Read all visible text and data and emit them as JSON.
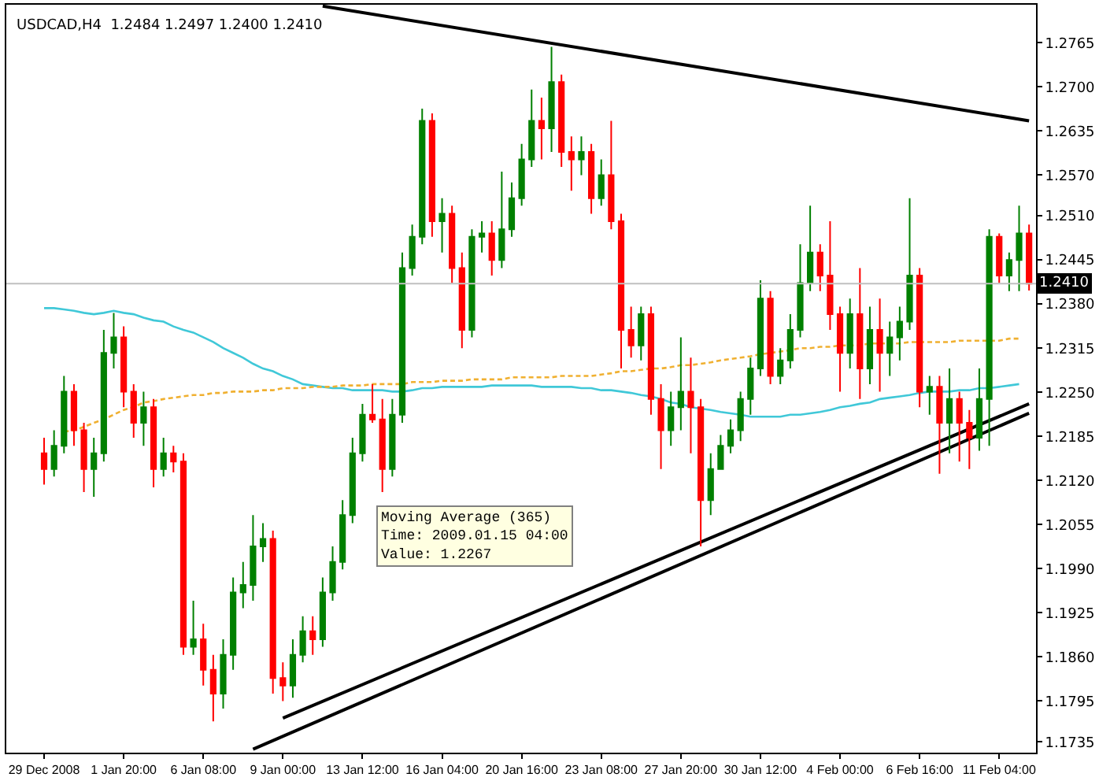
{
  "chart_data": {
    "type": "candlestick",
    "title": "USDCAD,H4  1.2484 1.2497 1.2400 1.2410",
    "categories": [
      "29 Dec 2008",
      null,
      null,
      null,
      null,
      null,
      null,
      null,
      "1 Jan 20:00",
      null,
      null,
      null,
      null,
      null,
      null,
      null,
      "6 Jan 08:00",
      null,
      null,
      null,
      null,
      null,
      null,
      null,
      "9 Jan 00:00",
      null,
      null,
      null,
      null,
      null,
      null,
      null,
      "13 Jan 12:00",
      null,
      null,
      null,
      null,
      null,
      null,
      null,
      "16 Jan 04:00",
      null,
      null,
      null,
      null,
      null,
      null,
      null,
      "20 Jan 16:00",
      null,
      null,
      null,
      null,
      null,
      null,
      null,
      "23 Jan 08:00",
      null,
      null,
      null,
      null,
      null,
      null,
      null,
      "27 Jan 20:00",
      null,
      null,
      null,
      null,
      null,
      null,
      null,
      "30 Jan 12:00",
      null,
      null,
      null,
      null,
      null,
      null,
      null,
      "4 Feb 00:00",
      null,
      null,
      null,
      null,
      null,
      null,
      null,
      "6 Feb 16:00",
      null,
      null,
      null,
      null,
      null,
      null,
      null,
      "11 Feb 04:00",
      null,
      null,
      null
    ],
    "ohlc": [
      [
        1.216,
        1.2183,
        1.2114,
        1.2137
      ],
      [
        1.2137,
        1.2194,
        1.2126,
        1.2171
      ],
      [
        1.2171,
        1.2274,
        1.216,
        1.2251
      ],
      [
        1.2251,
        1.2262,
        1.2171,
        1.2194
      ],
      [
        1.2194,
        1.2205,
        1.2103,
        1.2137
      ],
      [
        1.2137,
        1.2183,
        1.2096,
        1.216
      ],
      [
        1.216,
        1.2342,
        1.2148,
        1.2308
      ],
      [
        1.2308,
        1.2367,
        1.2285,
        1.2331
      ],
      [
        1.2331,
        1.2347,
        1.2228,
        1.2251
      ],
      [
        1.2251,
        1.2262,
        1.2183,
        1.2205
      ],
      [
        1.2205,
        1.2251,
        1.2171,
        1.2228
      ],
      [
        1.2228,
        1.224,
        1.211,
        1.2137
      ],
      [
        1.2137,
        1.2183,
        1.2126,
        1.216
      ],
      [
        1.216,
        1.2171,
        1.2132,
        1.2148
      ],
      [
        1.2148,
        1.216,
        1.1863,
        1.1875
      ],
      [
        1.1875,
        1.1943,
        1.1863,
        1.1886
      ],
      [
        1.1886,
        1.1909,
        1.1818,
        1.1841
      ],
      [
        1.1841,
        1.1863,
        1.1765,
        1.1806
      ],
      [
        1.1806,
        1.1886,
        1.1784,
        1.1863
      ],
      [
        1.1863,
        1.1977,
        1.1841,
        1.1955
      ],
      [
        1.1955,
        1.2,
        1.1932,
        1.1966
      ],
      [
        1.1966,
        1.2069,
        1.1943,
        1.2023
      ],
      [
        1.2023,
        1.2057,
        1.2,
        1.2034
      ],
      [
        1.2034,
        1.2046,
        1.1806,
        1.1829
      ],
      [
        1.1829,
        1.1852,
        1.1795,
        1.1818
      ],
      [
        1.1818,
        1.1886,
        1.18,
        1.1863
      ],
      [
        1.1863,
        1.192,
        1.1852,
        1.1898
      ],
      [
        1.1898,
        1.192,
        1.1863,
        1.1886
      ],
      [
        1.1886,
        1.1977,
        1.1875,
        1.1955
      ],
      [
        1.1955,
        1.2023,
        1.1943,
        1.2
      ],
      [
        1.2,
        1.2091,
        1.1989,
        1.2069
      ],
      [
        1.2069,
        1.2183,
        1.2057,
        1.216
      ],
      [
        1.216,
        1.2233,
        1.2148,
        1.2217
      ],
      [
        1.2217,
        1.2262,
        1.2205,
        1.221
      ],
      [
        1.221,
        1.224,
        1.2103,
        1.2137
      ],
      [
        1.2137,
        1.224,
        1.2126,
        1.2217
      ],
      [
        1.2217,
        1.2456,
        1.2205,
        1.2433
      ],
      [
        1.2433,
        1.2497,
        1.2422,
        1.2479
      ],
      [
        1.2479,
        1.2668,
        1.2468,
        1.265
      ],
      [
        1.265,
        1.2661,
        1.2479,
        1.2502
      ],
      [
        1.2502,
        1.2536,
        1.2456,
        1.2513
      ],
      [
        1.2513,
        1.2525,
        1.2411,
        1.2433
      ],
      [
        1.2433,
        1.2456,
        1.2315,
        1.2342
      ],
      [
        1.2342,
        1.249,
        1.2331,
        1.2479
      ],
      [
        1.2479,
        1.2502,
        1.2456,
        1.2484
      ],
      [
        1.2484,
        1.2502,
        1.2422,
        1.2445
      ],
      [
        1.2445,
        1.2575,
        1.2433,
        1.249
      ],
      [
        1.249,
        1.2559,
        1.2479,
        1.2536
      ],
      [
        1.2536,
        1.2616,
        1.2525,
        1.2593
      ],
      [
        1.2593,
        1.2696,
        1.2582,
        1.265
      ],
      [
        1.265,
        1.2684,
        1.2593,
        1.2639
      ],
      [
        1.2639,
        1.2759,
        1.2604,
        1.2707
      ],
      [
        1.2707,
        1.2718,
        1.2582,
        1.2604
      ],
      [
        1.2604,
        1.2627,
        1.2547,
        1.2593
      ],
      [
        1.2593,
        1.2627,
        1.257,
        1.2604
      ],
      [
        1.2604,
        1.2616,
        1.2513,
        1.2536
      ],
      [
        1.2536,
        1.2593,
        1.2525,
        1.257
      ],
      [
        1.257,
        1.265,
        1.249,
        1.2502
      ],
      [
        1.2502,
        1.2513,
        1.2285,
        1.2342
      ],
      [
        1.2342,
        1.2376,
        1.2301,
        1.2319
      ],
      [
        1.2319,
        1.2376,
        1.2297,
        1.2365
      ],
      [
        1.2365,
        1.2376,
        1.2217,
        1.224
      ],
      [
        1.224,
        1.2262,
        1.2137,
        1.2194
      ],
      [
        1.2194,
        1.2251,
        1.2171,
        1.2228
      ],
      [
        1.2228,
        1.2331,
        1.2194,
        1.2251
      ],
      [
        1.2251,
        1.2301,
        1.216,
        1.2228
      ],
      [
        1.2228,
        1.224,
        1.2023,
        1.2091
      ],
      [
        1.2091,
        1.216,
        1.2069,
        1.2137
      ],
      [
        1.2137,
        1.2187,
        1.2137,
        1.2171
      ],
      [
        1.2171,
        1.221,
        1.216,
        1.2194
      ],
      [
        1.2194,
        1.2251,
        1.2178,
        1.224
      ],
      [
        1.224,
        1.2301,
        1.2217,
        1.2285
      ],
      [
        1.2285,
        1.2415,
        1.2274,
        1.2388
      ],
      [
        1.2388,
        1.2399,
        1.2262,
        1.2274
      ],
      [
        1.2274,
        1.2315,
        1.2262,
        1.2297
      ],
      [
        1.2297,
        1.2365,
        1.2285,
        1.2342
      ],
      [
        1.2342,
        1.2468,
        1.2331,
        1.2411
      ],
      [
        1.2411,
        1.2525,
        1.2399,
        1.2456
      ],
      [
        1.2456,
        1.2468,
        1.2399,
        1.2422
      ],
      [
        1.2422,
        1.2502,
        1.2342,
        1.2365
      ],
      [
        1.2365,
        1.2376,
        1.2251,
        1.2308
      ],
      [
        1.2308,
        1.2388,
        1.2285,
        1.2365
      ],
      [
        1.2365,
        1.2433,
        1.224,
        1.2285
      ],
      [
        1.2285,
        1.2376,
        1.2262,
        1.2342
      ],
      [
        1.2342,
        1.2388,
        1.2251,
        1.2308
      ],
      [
        1.2308,
        1.2354,
        1.2274,
        1.2331
      ],
      [
        1.2331,
        1.2376,
        1.2297,
        1.2354
      ],
      [
        1.2354,
        1.2536,
        1.2342,
        1.2422
      ],
      [
        1.2422,
        1.2433,
        1.2228,
        1.2251
      ],
      [
        1.2251,
        1.2274,
        1.2217,
        1.2258
      ],
      [
        1.2258,
        1.2274,
        1.213,
        1.2205
      ],
      [
        1.2205,
        1.2285,
        1.216,
        1.224
      ],
      [
        1.224,
        1.2251,
        1.2148,
        1.2205
      ],
      [
        1.2205,
        1.2224,
        1.2137,
        1.2183
      ],
      [
        1.2183,
        1.2285,
        1.2164,
        1.224
      ],
      [
        1.224,
        1.249,
        1.2171,
        1.2479
      ],
      [
        1.2479,
        1.2484,
        1.2411,
        1.2422
      ],
      [
        1.2422,
        1.2456,
        1.2399,
        1.2445
      ],
      [
        1.2445,
        1.2525,
        1.2399,
        1.2484
      ],
      [
        1.2484,
        1.2497,
        1.24,
        1.241
      ]
    ],
    "colors": [
      "#ff0000",
      "#008000",
      "#008000",
      "#ff0000",
      "#ff0000",
      "#008000",
      "#008000",
      "#008000",
      "#ff0000",
      "#ff0000",
      "#008000",
      "#ff0000",
      "#008000",
      "#ff0000",
      "#ff0000",
      "#008000",
      "#ff0000",
      "#ff0000",
      "#008000",
      "#008000",
      "#008000",
      "#008000",
      "#008000",
      "#ff0000",
      "#ff0000",
      "#008000",
      "#008000",
      "#ff0000",
      "#008000",
      "#008000",
      "#008000",
      "#008000",
      "#008000",
      "#ff0000",
      "#ff0000",
      "#008000",
      "#008000",
      "#008000",
      "#008000",
      "#ff0000",
      "#008000",
      "#ff0000",
      "#ff0000",
      "#008000",
      "#008000",
      "#ff0000",
      "#008000",
      "#008000",
      "#008000",
      "#008000",
      "#ff0000",
      "#008000",
      "#ff0000",
      "#ff0000",
      "#008000",
      "#ff0000",
      "#008000",
      "#ff0000",
      "#ff0000",
      "#ff0000",
      "#008000",
      "#ff0000",
      "#ff0000",
      "#008000",
      "#008000",
      "#ff0000",
      "#ff0000",
      "#008000",
      "#008000",
      "#008000",
      "#008000",
      "#008000",
      "#008000",
      "#ff0000",
      "#008000",
      "#008000",
      "#008000",
      "#008000",
      "#ff0000",
      "#ff0000",
      "#ff0000",
      "#008000",
      "#ff0000",
      "#008000",
      "#ff0000",
      "#008000",
      "#008000",
      "#008000",
      "#ff0000",
      "#008000",
      "#ff0000",
      "#008000",
      "#ff0000",
      "#ff0000",
      "#008000",
      "#008000",
      "#ff0000",
      "#008000",
      "#008000",
      "#ff0000"
    ],
    "series": [
      {
        "type": "line",
        "color": "#40c8d8",
        "line_style": "solid",
        "values": [
          1.2374,
          1.2374,
          1.2372,
          1.237,
          1.2367,
          1.2365,
          1.2367,
          1.237,
          1.2367,
          1.2365,
          1.236,
          1.2356,
          1.2354,
          1.2347,
          1.2342,
          1.2338,
          1.2331,
          1.2324,
          1.2315,
          1.2308,
          1.2301,
          1.2292,
          1.2285,
          1.2281,
          1.2274,
          1.2269,
          1.2262,
          1.226,
          1.2258,
          1.2256,
          1.2256,
          1.2253,
          1.2253,
          1.2253,
          1.2253,
          1.2251,
          1.2251,
          1.2253,
          1.2256,
          1.2256,
          1.2258,
          1.2258,
          1.2258,
          1.2258,
          1.2258,
          1.226,
          1.226,
          1.226,
          1.226,
          1.226,
          1.2258,
          1.2258,
          1.2258,
          1.2258,
          1.2256,
          1.2256,
          1.2253,
          1.2253,
          1.2251,
          1.2249,
          1.2246,
          1.2244,
          1.224,
          1.2235,
          1.2233,
          1.2228,
          1.2226,
          1.2224,
          1.2221,
          1.2219,
          1.2217,
          1.2214,
          1.2214,
          1.2214,
          1.2214,
          1.2217,
          1.2217,
          1.2219,
          1.2221,
          1.2224,
          1.2228,
          1.223,
          1.2233,
          1.2235,
          1.224,
          1.2242,
          1.2244,
          1.2246,
          1.2249,
          1.2251,
          1.2251,
          1.2251,
          1.2253,
          1.2253,
          1.2256,
          1.2256,
          1.2258,
          1.226,
          1.2262,
          null
        ]
      },
      {
        "type": "line",
        "color": "#f0b030",
        "line_style": "dashed",
        "values": [
          null,
          null,
          1.2192,
          1.2194,
          1.2199,
          1.2205,
          1.221,
          1.2217,
          1.2224,
          1.2228,
          1.2235,
          1.2237,
          1.224,
          1.2242,
          1.2244,
          1.2246,
          1.2246,
          1.2249,
          1.2249,
          1.2251,
          1.2251,
          1.2251,
          1.2253,
          1.2253,
          1.2256,
          1.2256,
          1.2256,
          1.2258,
          1.2258,
          1.2258,
          1.226,
          1.226,
          1.226,
          1.2262,
          1.2262,
          1.2262,
          1.2262,
          1.2265,
          1.2265,
          1.2265,
          1.2267,
          1.2267,
          1.2267,
          1.2269,
          1.2269,
          1.2269,
          1.2269,
          1.2272,
          1.2272,
          1.2272,
          1.2272,
          1.2272,
          1.2274,
          1.2274,
          1.2274,
          1.2274,
          1.2276,
          1.2278,
          1.2281,
          1.2281,
          1.2283,
          1.2285,
          1.2285,
          1.2287,
          1.229,
          1.229,
          1.2292,
          1.2294,
          1.2297,
          1.2299,
          1.2301,
          1.2303,
          1.2306,
          1.2308,
          1.231,
          1.2312,
          1.2315,
          1.2315,
          1.2317,
          1.2317,
          1.2319,
          1.2319,
          1.2319,
          1.2322,
          1.2322,
          1.2322,
          1.2322,
          1.2324,
          1.2324,
          1.2324,
          1.2324,
          1.2324,
          1.2326,
          1.2326,
          1.2326,
          1.2326,
          1.2326,
          1.2329,
          1.2329,
          null
        ]
      },
      {
        "type": "line",
        "color": "#000000",
        "line_style": "solid",
        "values": [
          null,
          null,
          null,
          null,
          null,
          null,
          null,
          null,
          null,
          null,
          null,
          null,
          null,
          null,
          null,
          null,
          null,
          null,
          null,
          null,
          null,
          null,
          null,
          null,
          null,
          null,
          null,
          null,
          1.2819,
          null,
          null,
          null,
          null,
          null,
          null,
          null,
          null,
          null,
          null,
          null,
          null,
          null,
          null,
          null,
          null,
          null,
          null,
          null,
          null,
          null,
          null,
          null,
          null,
          null,
          null,
          null,
          null,
          null,
          null,
          null,
          null,
          null,
          null,
          null,
          null,
          null,
          null,
          null,
          null,
          null,
          null,
          null,
          null,
          null,
          null,
          null,
          null,
          null,
          null,
          null,
          null,
          null,
          null,
          null,
          null,
          null,
          null,
          null,
          null,
          null,
          null,
          null,
          null,
          null,
          null,
          null,
          null,
          null,
          null,
          1.265
        ]
      },
      {
        "type": "line",
        "color": "#000000",
        "line_style": "solid",
        "values": [
          null,
          null,
          null,
          null,
          null,
          null,
          null,
          null,
          null,
          null,
          null,
          null,
          null,
          null,
          null,
          null,
          null,
          null,
          null,
          null,
          null,
          null,
          null,
          null,
          1.177,
          null,
          null,
          null,
          null,
          null,
          null,
          null,
          null,
          null,
          null,
          null,
          null,
          null,
          null,
          null,
          null,
          null,
          null,
          null,
          null,
          null,
          null,
          null,
          null,
          null,
          null,
          null,
          null,
          null,
          null,
          null,
          null,
          null,
          null,
          null,
          null,
          null,
          null,
          null,
          null,
          null,
          null,
          null,
          null,
          null,
          null,
          null,
          null,
          null,
          null,
          null,
          null,
          null,
          null,
          null,
          null,
          null,
          null,
          null,
          null,
          null,
          null,
          null,
          null,
          null,
          null,
          null,
          null,
          null,
          null,
          null,
          null,
          null,
          null,
          1.2233
        ]
      },
      {
        "type": "line",
        "color": "#000000",
        "line_style": "solid",
        "values": [
          null,
          null,
          null,
          null,
          null,
          null,
          null,
          null,
          null,
          null,
          null,
          null,
          null,
          null,
          null,
          null,
          null,
          null,
          null,
          null,
          null,
          1.1724,
          null,
          null,
          null,
          null,
          null,
          null,
          null,
          null,
          null,
          null,
          null,
          null,
          null,
          null,
          null,
          null,
          null,
          null,
          null,
          null,
          null,
          null,
          null,
          null,
          null,
          null,
          null,
          null,
          null,
          null,
          null,
          null,
          null,
          null,
          null,
          null,
          null,
          null,
          null,
          null,
          null,
          null,
          null,
          null,
          null,
          null,
          null,
          null,
          null,
          null,
          null,
          null,
          null,
          null,
          null,
          null,
          null,
          null,
          null,
          null,
          null,
          null,
          null,
          null,
          null,
          null,
          null,
          null,
          null,
          null,
          null,
          null,
          null,
          null,
          null,
          null,
          null,
          1.2219
        ]
      }
    ],
    "ylim": [
      1.1719,
      1.2821
    ],
    "yticks": [
      1.2765,
      {
        "value": 1.27,
        "label": "1.2700"
      },
      1.2635,
      {
        "value": 1.257,
        "label": "1.2570"
      },
      {
        "value": 1.251,
        "label": "1.2510"
      },
      1.2445,
      {
        "value": 1.238,
        "label": "1.2380"
      },
      1.2315,
      {
        "value": 1.225,
        "label": "1.2250"
      },
      1.2185,
      {
        "value": 1.212,
        "label": "1.2120"
      },
      1.2055,
      {
        "value": 1.199,
        "label": "1.1990"
      },
      1.1925,
      {
        "value": 1.186,
        "label": "1.1860"
      },
      1.1795,
      1.1735
    ],
    "ref_lines": [
      {
        "axis": "y",
        "value": 1.241,
        "label": "1.2410",
        "color": "#c0c0c0"
      }
    ],
    "annotations": [
      "Moving Average (365)\nTime: 2009.01.15 04:00\nValue: 1.2267"
    ]
  }
}
